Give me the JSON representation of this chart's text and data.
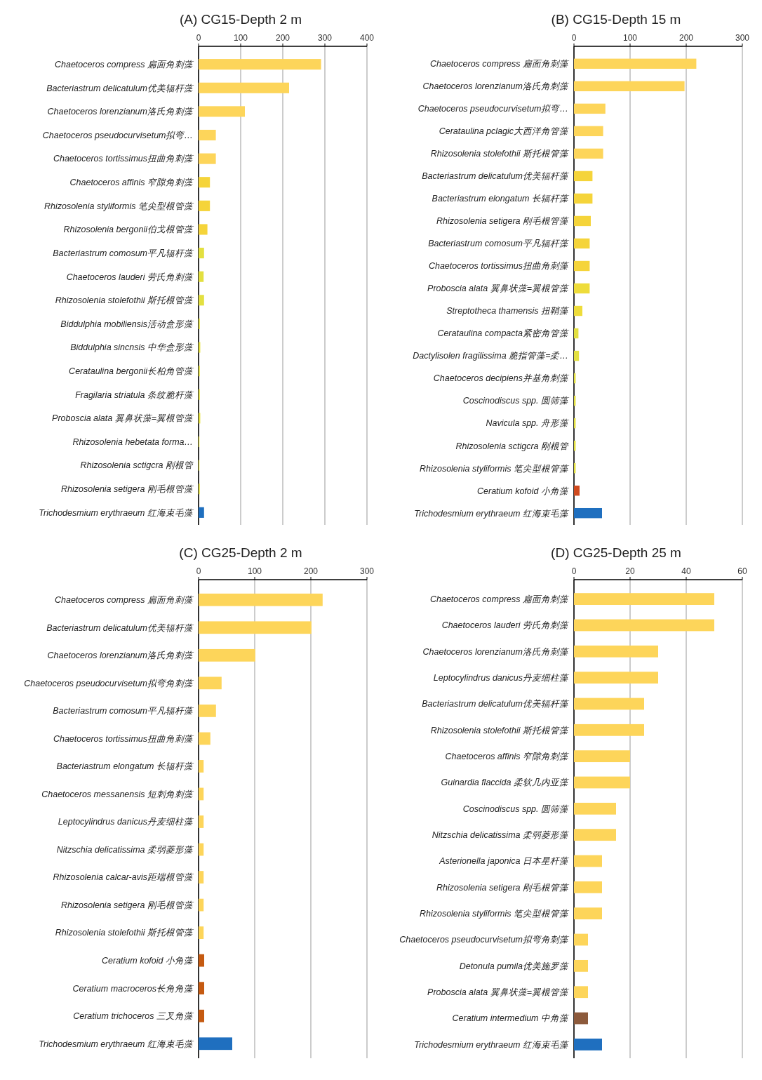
{
  "chart_data": [
    {
      "type": "bar",
      "orientation": "horizontal",
      "title": "(A) CG15-Depth 2 m",
      "grid": "x",
      "xlim": [
        0,
        400
      ],
      "xticks": [
        0,
        100,
        200,
        300,
        400
      ],
      "categories": [
        "Chaetoceros compress 扁面角刺藻",
        "Bacteriastrum delicatulum优美辐杆藻",
        "Chaetoceros lorenzianum洛氏角刺藻",
        "Chaetoceros pseudocurvisetum拟弯…",
        "Chaetoceros tortissimus扭曲角刺藻",
        "Chaetoceros affinis 窄隙角刺藻",
        "Rhizosolenia styliformis 笔尖型根管藻",
        "Rhizosolenia bergonii伯戈根管藻",
        "Bacteriastrum comosum平凡辐杆藻",
        "Chaetoceros lauderi 劳氏角刺藻",
        "Rhizosolenia stolefothii 斯托根管藻",
        "Biddulphia mobiliensis活动盒形藻",
        "Biddulphia sincnsis 中华盒形藻",
        "Cerataulina bergonii长柏角管藻",
        "Fragilaria striatula 条纹脆杆藻",
        "Proboscia alata 翼鼻状藻=翼根管藻",
        "Rhizosolenia hebetata forma…",
        "Rhizosolenia sctigcra 刚根管",
        "Rhizosolenia setigera 刚毛根管藻",
        "Trichodesmium erythraeum 红海束毛藻"
      ],
      "values": [
        291,
        215,
        110,
        41,
        41,
        27,
        27,
        21,
        13,
        12,
        13,
        3,
        4,
        3,
        3,
        4,
        2,
        2,
        3,
        13
      ],
      "colors": [
        "#fdd55a",
        "#fdd55a",
        "#fdd55a",
        "#fdd55a",
        "#fdd55a",
        "#f5d43a",
        "#f5d43a",
        "#f5d43a",
        "#e3e040",
        "#e3e040",
        "#e3e040",
        "#e3e040",
        "#e3e040",
        "#e3e040",
        "#e3e040",
        "#e3e040",
        "#e3e040",
        "#e3e040",
        "#e3e040",
        "#1f6fbf"
      ]
    },
    {
      "type": "bar",
      "orientation": "horizontal",
      "title": "(B) CG15-Depth 15 m",
      "grid": "x",
      "xlim": [
        0,
        300
      ],
      "xticks": [
        0,
        100,
        200,
        300
      ],
      "categories": [
        "Chaetoceros compress 扁面角刺藻",
        "Chaetoceros lorenzianum洛氏角刺藻",
        "Chaetoceros pseudocurvisetum拟弯…",
        "Cerataulina pclagic大西洋角管藻",
        "Rhizosolenia stolefothii 斯托根管藻",
        "Bacteriastrum delicatulum优美辐杆藻",
        "Bacteriastrum elongatum 长辐杆藻",
        "Rhizosolenia setigera 刚毛根管藻",
        "Bacteriastrum comosum平凡辐杆藻",
        "Chaetoceros tortissimus扭曲角刺藻",
        "Proboscia alata 翼鼻状藻=翼根管藻",
        "Streptotheca thamensis 扭鞘藻",
        "Cerataulina compacta紧密角管藻",
        "Dactylisolen fragilissima 脆指管藻=柔…",
        "Chaetoceros decipiens并基角刺藻",
        "Coscinodiscus spp. 圆筛藻",
        "Navicula spp. 舟形藻",
        "Rhizosolenia sctigcra 刚根管",
        "Rhizosolenia styliformis 笔尖型根管藻",
        "Ceratium kofoid 小角藻",
        "Trichodesmium erythraeum 红海束毛藻"
      ],
      "values": [
        218,
        197,
        56,
        52,
        52,
        33,
        33,
        30,
        28,
        28,
        28,
        15,
        8,
        9,
        3,
        3,
        3,
        3,
        3,
        10,
        50
      ],
      "colors": [
        "#fdd55a",
        "#fdd55a",
        "#fdd55a",
        "#fdd55a",
        "#fdd55a",
        "#f5d43a",
        "#f5d43a",
        "#f5d43a",
        "#f5d43a",
        "#f5d43a",
        "#eedc3a",
        "#eedc3a",
        "#e3e040",
        "#e3e040",
        "#e3e040",
        "#e3e040",
        "#e3e040",
        "#e3e040",
        "#e3e040",
        "#d04a1e",
        "#1f6fbf"
      ]
    },
    {
      "type": "bar",
      "orientation": "horizontal",
      "title": "(C) CG25-Depth 2 m",
      "grid": "x",
      "xlim": [
        0,
        300
      ],
      "xticks": [
        0,
        100,
        200,
        300
      ],
      "categories": [
        "Chaetoceros compress 扁面角刺藻",
        "Bacteriastrum delicatulum优美辐杆藻",
        "Chaetoceros lorenzianum洛氏角刺藻",
        "Chaetoceros pseudocurvisetum拟弯角刺藻",
        "Bacteriastrum comosum平凡辐杆藻",
        "Chaetoceros tortissimus扭曲角刺藻",
        "Bacteriastrum elongatum 长辐杆藻",
        "Chaetoceros messanensis 短刺角刺藻",
        "Leptocylindrus danicus丹麦细柱藻",
        "Nitzschia delicatissima 柔弱菱形藻",
        "Rhizosolenia calcar-avis距端根管藻",
        "Rhizosolenia setigera 刚毛根管藻",
        "Rhizosolenia stolefothii 斯托根管藻",
        "Ceratium kofoid 小角藻",
        "Ceratium macroceros长角角藻",
        "Ceratium trichoceros 三叉角藻",
        "Trichodesmium erythraeum 红海束毛藻"
      ],
      "values": [
        221,
        201,
        101,
        41,
        31,
        21,
        9,
        9,
        9,
        9,
        9,
        9,
        9,
        10,
        10,
        10,
        60
      ],
      "colors": [
        "#fdd55a",
        "#fdd55a",
        "#fdd55a",
        "#fdd55a",
        "#fdd55a",
        "#fdd55a",
        "#fdd55a",
        "#fdd55a",
        "#fdd55a",
        "#fdd55a",
        "#fdd55a",
        "#fdd55a",
        "#fdd55a",
        "#c55a11",
        "#c55a11",
        "#c55a11",
        "#1f6fbf"
      ]
    },
    {
      "type": "bar",
      "orientation": "horizontal",
      "title": "(D) CG25-Depth 25 m",
      "grid": "x",
      "xlim": [
        0,
        60
      ],
      "xticks": [
        0,
        20,
        40,
        60
      ],
      "categories": [
        "Chaetoceros compress 扁面角刺藻",
        "Chaetoceros lauderi 劳氏角刺藻",
        "Chaetoceros lorenzianum洛氏角刺藻",
        "Leptocylindrus danicus丹麦细柱藻",
        "Bacteriastrum delicatulum优美辐杆藻",
        "Rhizosolenia stolefothii 斯托根管藻",
        "Chaetoceros affinis 窄隙角刺藻",
        "Guinardia flaccida 柔软几内亚藻",
        "Coscinodiscus spp. 圆筛藻",
        "Nitzschia delicatissima 柔弱菱形藻",
        "Asterionella japonica 日本星杆藻",
        "Rhizosolenia setigera 刚毛根管藻",
        "Rhizosolenia styliformis 笔尖型根管藻",
        "Chaetoceros pseudocurvisetum拟弯角刺藻",
        "Detonula pumila优美施罗藻",
        "Proboscia alata 翼鼻状藻=翼根管藻",
        "Ceratium intermedium 中角藻",
        "Trichodesmium erythraeum 红海束毛藻"
      ],
      "values": [
        50,
        50,
        30,
        30,
        25,
        25,
        20,
        20,
        15,
        15,
        10,
        10,
        10,
        5,
        5,
        5,
        5,
        10
      ],
      "colors": [
        "#fdd55a",
        "#fdd55a",
        "#fdd55a",
        "#fdd55a",
        "#fdd55a",
        "#fdd55a",
        "#fdd55a",
        "#fdd55a",
        "#fdd55a",
        "#fdd55a",
        "#fdd55a",
        "#fdd55a",
        "#fdd55a",
        "#fdd55a",
        "#fdd55a",
        "#fdd55a",
        "#8c5a3c",
        "#1f6fbf"
      ]
    }
  ]
}
